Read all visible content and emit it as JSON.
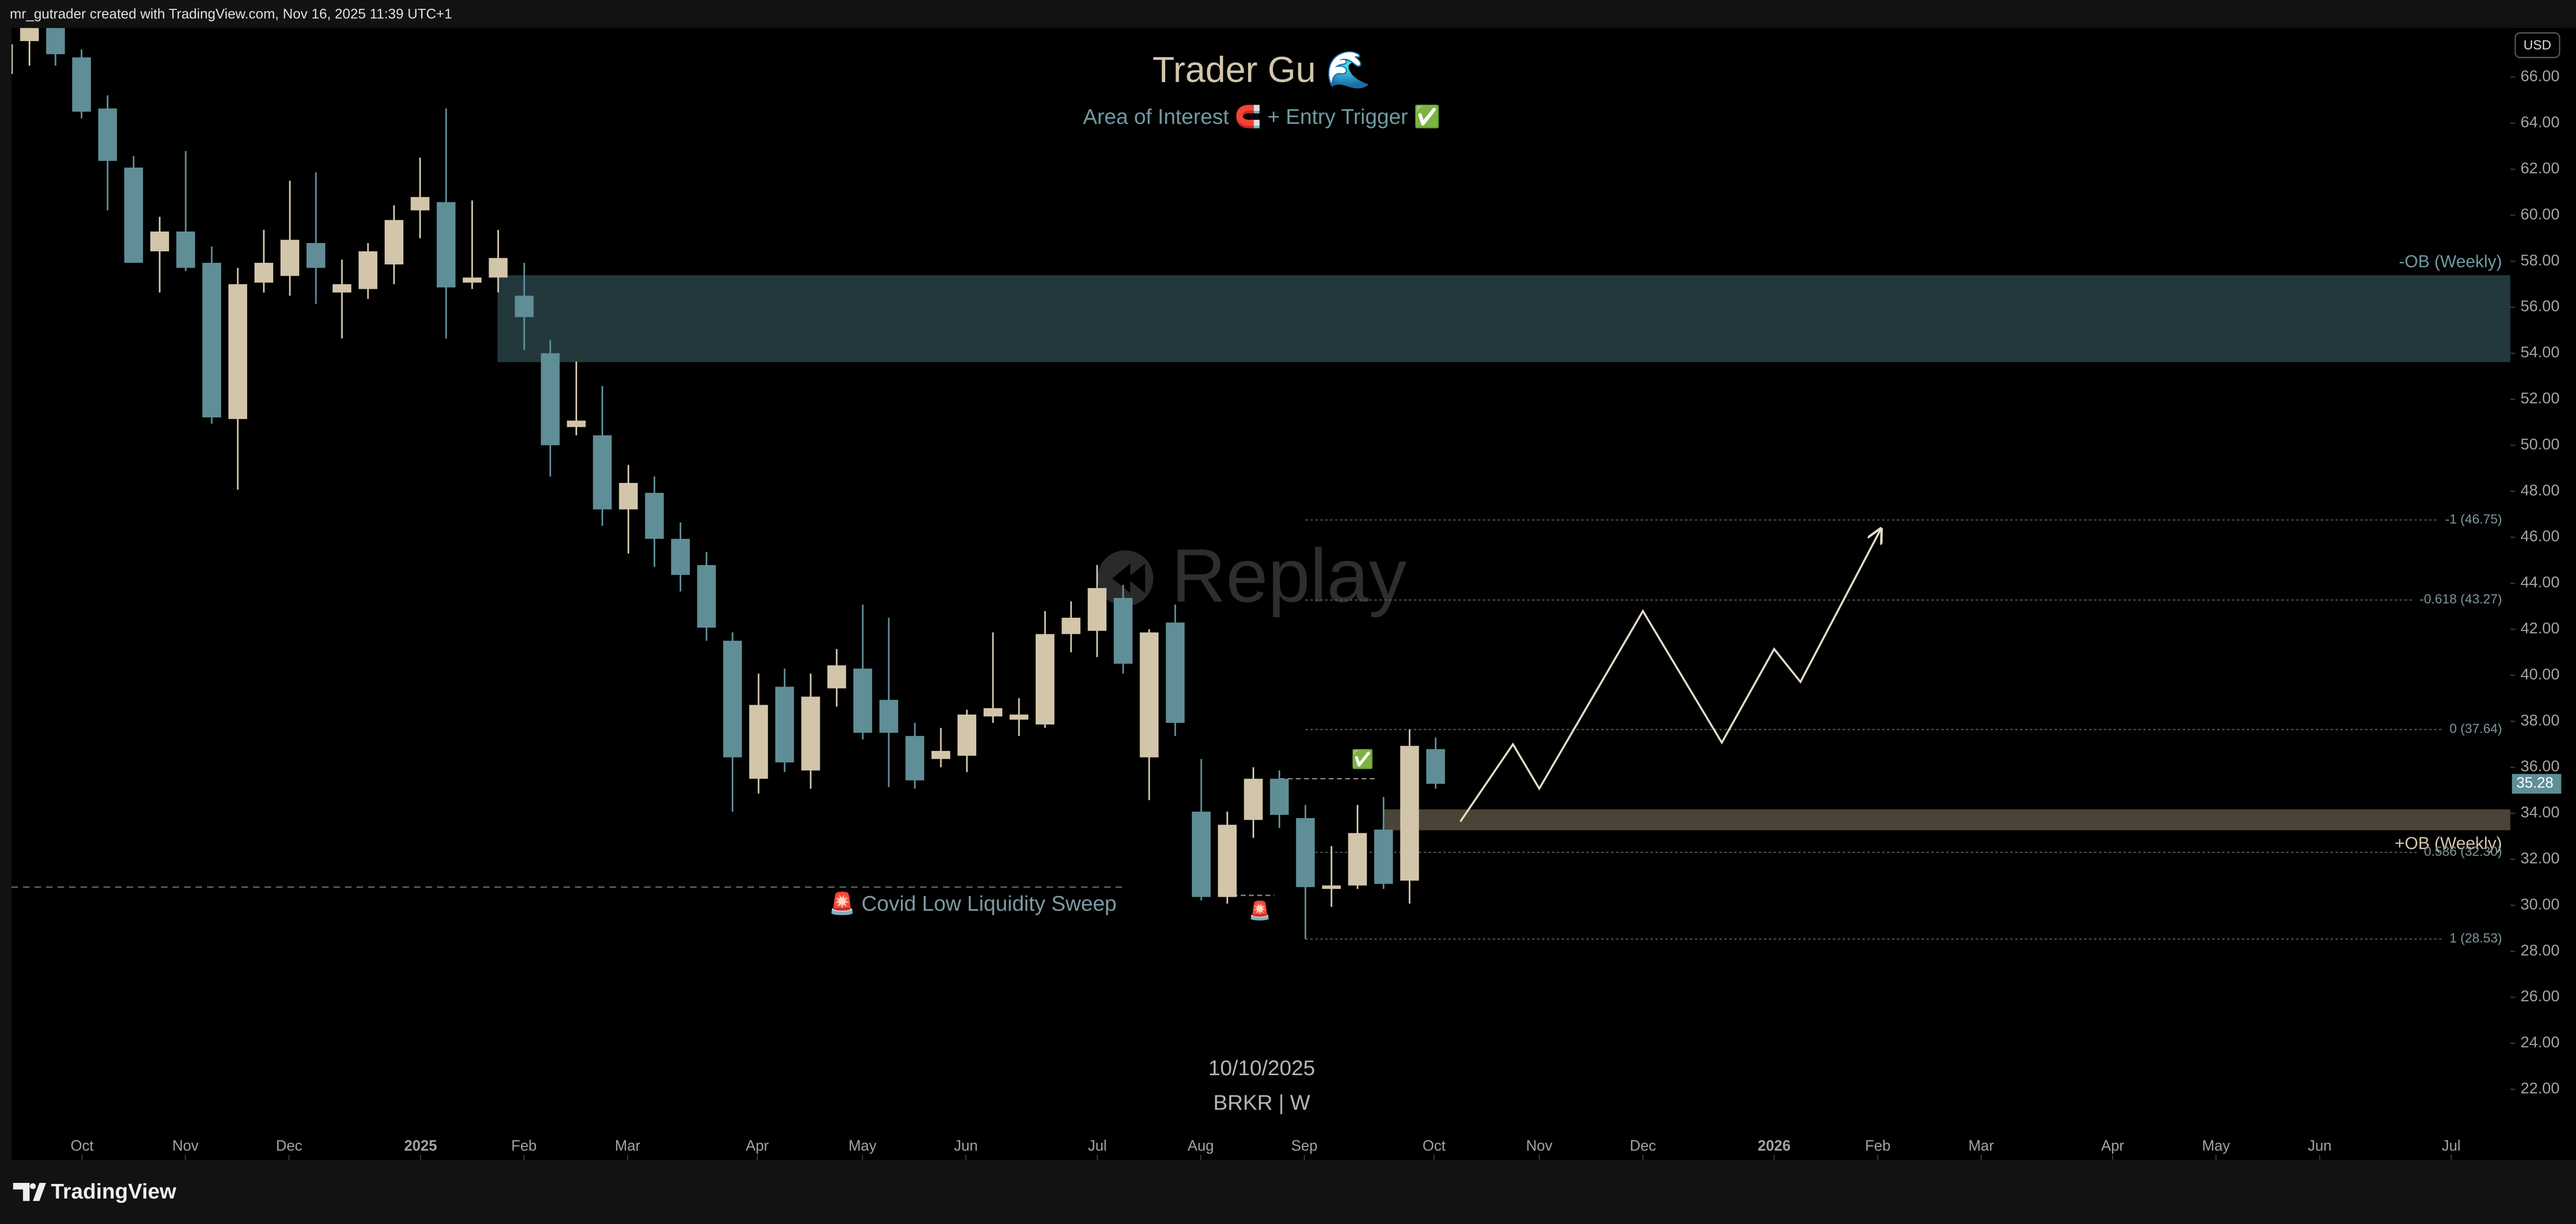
{
  "header": {
    "text": "mr_gutrader created with TradingView.com, Nov 16, 2025 11:39 UTC+1"
  },
  "footer": {
    "brand": "TradingView"
  },
  "currency": "USD",
  "chart_data": {
    "type": "candlestick",
    "title": "Trader Gu 🌊",
    "subtitle": "Area of Interest 🧲 + Entry Trigger ✅",
    "watermark": "Replay",
    "date": "10/10/2025",
    "symbol": "BRKR | W",
    "up_color": "#d3c5aa",
    "down_color": "#5f8e97",
    "candles": [
      {
        "open": 66.14,
        "high": 67.93,
        "low": 66.0,
        "close": 67.43
      },
      {
        "open": 67.57,
        "high": 68.64,
        "low": 66.5,
        "close": 68.14
      },
      {
        "open": 68.14,
        "high": 68.5,
        "low": 66.5,
        "close": 67.0
      },
      {
        "open": 66.86,
        "high": 67.21,
        "low": 64.21,
        "close": 64.5
      },
      {
        "open": 64.64,
        "high": 65.21,
        "low": 60.21,
        "close": 62.36
      },
      {
        "open": 62.07,
        "high": 62.57,
        "low": 57.93,
        "close": 57.93
      },
      {
        "open": 58.43,
        "high": 59.93,
        "low": 56.64,
        "close": 59.29
      },
      {
        "open": 59.29,
        "high": 62.79,
        "low": 57.57,
        "close": 57.71
      },
      {
        "open": 57.93,
        "high": 58.64,
        "low": 50.93,
        "close": 51.21
      },
      {
        "open": 51.14,
        "high": 57.71,
        "low": 48.07,
        "close": 57.0
      },
      {
        "open": 57.07,
        "high": 59.36,
        "low": 56.64,
        "close": 57.93
      },
      {
        "open": 57.36,
        "high": 61.5,
        "low": 56.5,
        "close": 58.93
      },
      {
        "open": 58.79,
        "high": 61.86,
        "low": 56.14,
        "close": 57.71
      },
      {
        "open": 56.64,
        "high": 58.07,
        "low": 54.64,
        "close": 57.0
      },
      {
        "open": 56.79,
        "high": 58.79,
        "low": 56.36,
        "close": 58.43
      },
      {
        "open": 57.86,
        "high": 60.43,
        "low": 57.0,
        "close": 59.79
      },
      {
        "open": 60.21,
        "high": 62.5,
        "low": 59.0,
        "close": 60.79
      },
      {
        "open": 60.57,
        "high": 64.64,
        "low": 54.64,
        "close": 56.86
      },
      {
        "open": 57.07,
        "high": 60.64,
        "low": 56.79,
        "close": 57.29
      },
      {
        "open": 57.29,
        "high": 59.36,
        "low": 56.64,
        "close": 58.14
      },
      {
        "open": 56.5,
        "high": 57.93,
        "low": 54.14,
        "close": 55.57
      },
      {
        "open": 54.0,
        "high": 54.57,
        "low": 48.64,
        "close": 50.0
      },
      {
        "open": 50.79,
        "high": 53.64,
        "low": 50.43,
        "close": 51.07
      },
      {
        "open": 50.43,
        "high": 52.57,
        "low": 46.5,
        "close": 47.21
      },
      {
        "open": 47.21,
        "high": 49.14,
        "low": 45.29,
        "close": 48.36
      },
      {
        "open": 47.93,
        "high": 48.64,
        "low": 44.71,
        "close": 45.93
      },
      {
        "open": 45.93,
        "high": 46.64,
        "low": 43.64,
        "close": 44.36
      },
      {
        "open": 44.79,
        "high": 45.36,
        "low": 41.5,
        "close": 42.07
      },
      {
        "open": 41.5,
        "high": 41.86,
        "low": 34.07,
        "close": 36.43
      },
      {
        "open": 35.5,
        "high": 40.07,
        "low": 34.86,
        "close": 38.71
      },
      {
        "open": 39.5,
        "high": 40.29,
        "low": 35.79,
        "close": 36.21
      },
      {
        "open": 35.86,
        "high": 40.07,
        "low": 35.07,
        "close": 39.07
      },
      {
        "open": 39.43,
        "high": 41.14,
        "low": 38.64,
        "close": 40.43
      },
      {
        "open": 40.29,
        "high": 43.07,
        "low": 37.21,
        "close": 37.5
      },
      {
        "open": 38.93,
        "high": 42.5,
        "low": 35.14,
        "close": 37.5
      },
      {
        "open": 37.36,
        "high": 37.93,
        "low": 35.07,
        "close": 35.43
      },
      {
        "open": 36.36,
        "high": 37.71,
        "low": 36.0,
        "close": 36.71
      },
      {
        "open": 36.5,
        "high": 38.5,
        "low": 35.79,
        "close": 38.29
      },
      {
        "open": 38.21,
        "high": 41.86,
        "low": 37.93,
        "close": 38.57
      },
      {
        "open": 38.07,
        "high": 39.0,
        "low": 37.36,
        "close": 38.29
      },
      {
        "open": 37.86,
        "high": 42.79,
        "low": 37.71,
        "close": 41.79
      },
      {
        "open": 41.79,
        "high": 43.21,
        "low": 41.0,
        "close": 42.5
      },
      {
        "open": 41.93,
        "high": 44.79,
        "low": 40.79,
        "close": 43.79
      },
      {
        "open": 43.36,
        "high": 43.93,
        "low": 40.07,
        "close": 40.5
      },
      {
        "open": 36.43,
        "high": 42.0,
        "low": 34.57,
        "close": 41.86
      },
      {
        "open": 42.29,
        "high": 43.07,
        "low": 37.36,
        "close": 37.93
      },
      {
        "open": 34.07,
        "high": 36.36,
        "low": 30.21,
        "close": 30.36
      },
      {
        "open": 30.36,
        "high": 34.07,
        "low": 30.07,
        "close": 33.5
      },
      {
        "open": 33.71,
        "high": 36.0,
        "low": 32.93,
        "close": 35.5
      },
      {
        "open": 35.5,
        "high": 35.86,
        "low": 33.36,
        "close": 33.93
      },
      {
        "open": 33.79,
        "high": 34.36,
        "low": 28.53,
        "close": 30.79
      },
      {
        "open": 30.71,
        "high": 32.57,
        "low": 29.93,
        "close": 30.86
      },
      {
        "open": 30.86,
        "high": 34.36,
        "low": 30.71,
        "close": 33.14
      },
      {
        "open": 33.29,
        "high": 34.71,
        "low": 30.71,
        "close": 30.93
      },
      {
        "open": 31.07,
        "high": 37.64,
        "low": 30.07,
        "close": 36.93
      },
      {
        "open": 36.79,
        "high": 37.29,
        "low": 35.07,
        "close": 35.28
      }
    ],
    "xlim": [
      0.31,
      96.27
    ],
    "xticks": [
      {
        "value": 3.02,
        "label": "Oct"
      },
      {
        "value": 6.99,
        "label": "Nov"
      },
      {
        "value": 10.97,
        "label": "Dec"
      },
      {
        "value": 16.02,
        "label": "2025"
      },
      {
        "value": 19.99,
        "label": "Feb"
      },
      {
        "value": 23.97,
        "label": "Mar"
      },
      {
        "value": 28.95,
        "label": "Apr"
      },
      {
        "value": 32.99,
        "label": "May"
      },
      {
        "value": 36.96,
        "label": "Jun"
      },
      {
        "value": 42.01,
        "label": "Jul"
      },
      {
        "value": 45.98,
        "label": "Aug"
      },
      {
        "value": 49.96,
        "label": "Sep"
      },
      {
        "value": 54.94,
        "label": "Oct"
      },
      {
        "value": 58.98,
        "label": "Nov"
      },
      {
        "value": 62.96,
        "label": "Dec"
      },
      {
        "value": 68.0,
        "label": "2026"
      },
      {
        "value": 71.98,
        "label": "Feb"
      },
      {
        "value": 75.95,
        "label": "Mar"
      },
      {
        "value": 81.0,
        "label": "Apr"
      },
      {
        "value": 84.97,
        "label": "May"
      },
      {
        "value": 88.95,
        "label": "Jun"
      },
      {
        "value": 94.0,
        "label": "Jul"
      }
    ],
    "ylim": [
      18.93,
      68.14
    ],
    "yticks": [
      {
        "value": 22,
        "label": "22.00"
      },
      {
        "value": 24,
        "label": "24.00"
      },
      {
        "value": 26,
        "label": "26.00"
      },
      {
        "value": 28,
        "label": "28.00"
      },
      {
        "value": 30,
        "label": "30.00"
      },
      {
        "value": 32,
        "label": "32.00"
      },
      {
        "value": 34,
        "label": "34.00"
      },
      {
        "value": 36,
        "label": "36.00"
      },
      {
        "value": 38,
        "label": "38.00"
      },
      {
        "value": 40,
        "label": "40.00"
      },
      {
        "value": 42,
        "label": "42.00"
      },
      {
        "value": 44,
        "label": "44.00"
      },
      {
        "value": 46,
        "label": "46.00"
      },
      {
        "value": 48,
        "label": "48.00"
      },
      {
        "value": 50,
        "label": "50.00"
      },
      {
        "value": 52,
        "label": "52.00"
      },
      {
        "value": 54,
        "label": "54.00"
      },
      {
        "value": 56,
        "label": "56.00"
      },
      {
        "value": 58,
        "label": "58.00"
      },
      {
        "value": 60,
        "label": "60.00"
      },
      {
        "value": 62,
        "label": "62.00"
      },
      {
        "value": 64,
        "label": "64.00"
      },
      {
        "value": 66,
        "label": "66.00"
      }
    ],
    "zones": [
      {
        "label": "-OB (Weekly)",
        "top": 57.36,
        "bottom": 53.64,
        "start": 19,
        "color": "#22383d",
        "label_side": "above",
        "label_color": "#6f9aa3"
      },
      {
        "label": "+OB (Weekly)",
        "top": 34.14,
        "bottom": 33.29,
        "start": 53,
        "color": "#4a4437",
        "label_side": "below",
        "label_color": "#d3c5aa"
      }
    ],
    "fib_levels": [
      {
        "label": "-1 (46.75)",
        "value": 46.75,
        "start": 50
      },
      {
        "label": "-0.618 (43.27)",
        "value": 43.27,
        "start": 50
      },
      {
        "label": "0 (37.64)",
        "value": 37.64,
        "start": 50
      },
      {
        "label": "0.586 (32.30)",
        "value": 32.3,
        "start": 50
      },
      {
        "label": "1 (28.53)",
        "value": 28.53,
        "start": 50
      }
    ],
    "sweep_line": {
      "label": "🚨 Covid Low Liquidity Sweep",
      "value": 30.79,
      "end": 43
    },
    "dashed_lines": [
      {
        "value": 35.5,
        "start": 49,
        "end": 52.75
      },
      {
        "value": 30.43,
        "start": 47.2,
        "end": 48.8
      }
    ],
    "markers": [
      {
        "text": "✅",
        "x": 52.2,
        "y": 36.29
      },
      {
        "text": "🚨",
        "x": 48.25,
        "y": 29.71
      }
    ],
    "projection": {
      "x": [
        55.95,
        57.97,
        58.98,
        62.96,
        65.99,
        68.0,
        69.01,
        72.1
      ],
      "y": [
        33.64,
        37.0,
        35.07,
        42.79,
        37.07,
        41.14,
        39.71,
        46.36
      ],
      "color": "#e6dcc8"
    }
  }
}
